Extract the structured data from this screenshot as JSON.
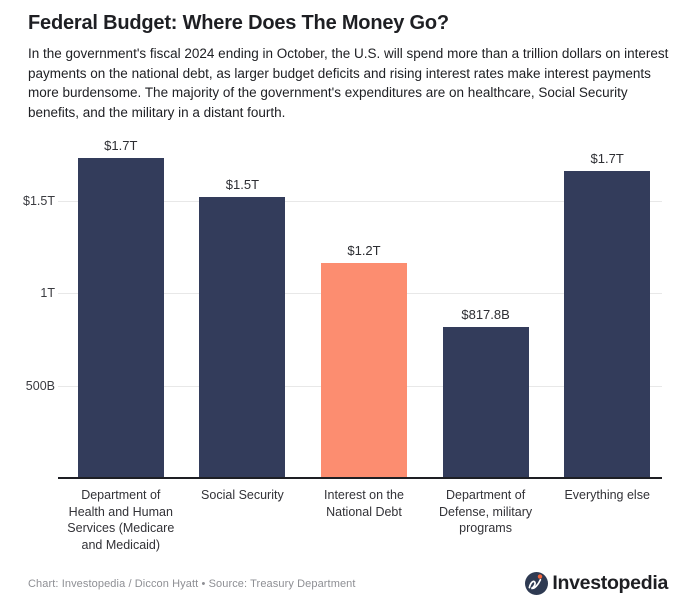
{
  "page": {
    "title": "Federal Budget: Where Does The Money Go?",
    "description": "In the government's fiscal 2024 ending in October, the U.S. will spend more than a trillion dollars on interest payments on the national debt, as larger budget deficits and rising interest rates make interest payments more burdensome. The majority of the government's expenditures are on healthcare, Social Security benefits, and the military in a distant fourth."
  },
  "chart_data": {
    "type": "bar",
    "categories": [
      "Department of Health and Human Services (Medicare and Medicaid)",
      "Social Security",
      "Interest on the National Debt",
      "Department of Defense, military programs",
      "Everything else"
    ],
    "values_billions": [
      1730,
      1520,
      1160,
      817.8,
      1660
    ],
    "value_labels": [
      "$1.7T",
      "$1.5T",
      "$1.2T",
      "$817.8B",
      "$1.7T"
    ],
    "bar_colors": [
      "#333C5B",
      "#333C5B",
      "#FC8D70",
      "#333C5B",
      "#333C5B"
    ],
    "highlight_index": 2,
    "yticks": [
      {
        "value_billions": 1500,
        "label": "$1.5T"
      },
      {
        "value_billions": 1000,
        "label": "1T"
      },
      {
        "value_billions": 500,
        "label": "500B"
      }
    ],
    "ylim_billions": [
      0,
      1850
    ],
    "grid": "horizontal",
    "legend": "none",
    "colors": {
      "bar_primary": "#333C5B",
      "bar_highlight": "#FC8D70",
      "gridline": "#E8E8E8",
      "axis_line": "#1E1F24"
    }
  },
  "footer": {
    "credit": "Chart: Investopedia / Diccon Hyatt • Source: Treasury Department",
    "logo": {
      "brand": "Investopedia",
      "circle_color": "#2E3A52",
      "dot_color": "#F2653C",
      "swoosh_color": "#FFFFFF",
      "text_color": "#1E1F23"
    }
  }
}
